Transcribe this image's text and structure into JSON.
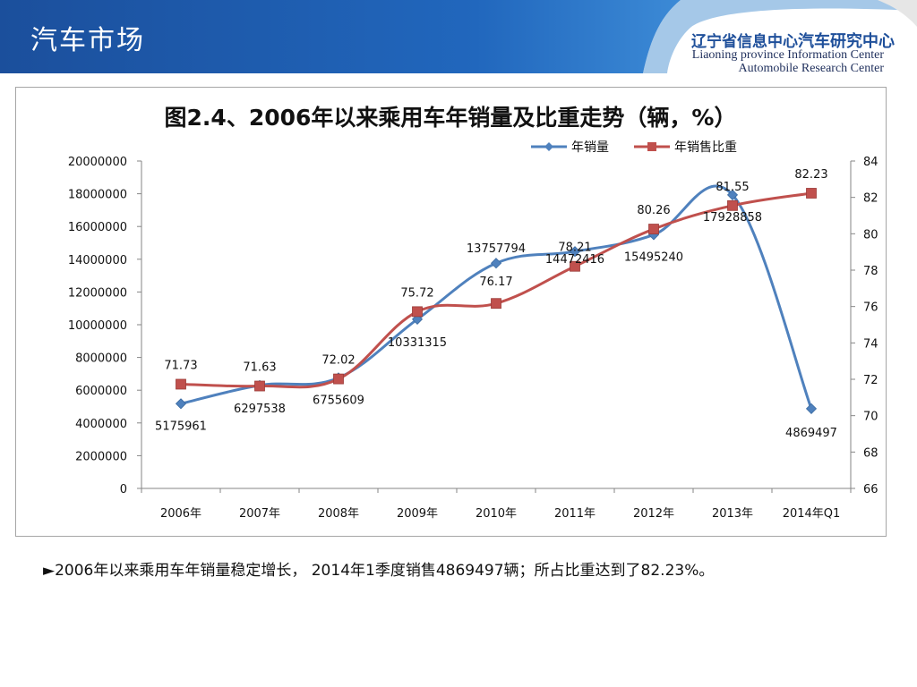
{
  "header": {
    "title": "汽车市场",
    "org_cn_prefix": "辽宁省信息中心",
    "org_cn_suffix": "汽车研究中心",
    "org_en_line1": "Liaoning province Information Center",
    "org_en_line2": "Automobile Research Center"
  },
  "colors": {
    "header_blue": "#1d5aa8",
    "series_volume": "#4f81bd",
    "series_share": "#c0504d"
  },
  "chart_data": {
    "type": "line",
    "title": "图2.4、2006年以来乘用车年销量及比重走势（辆，%）",
    "categories": [
      "2006年",
      "2007年",
      "2008年",
      "2009年",
      "2010年",
      "2011年",
      "2012年",
      "2013年",
      "2014年Q1"
    ],
    "series": [
      {
        "name": "年销量",
        "axis": "left",
        "marker": "diamond",
        "values": [
          5175961,
          6297538,
          6755609,
          10331315,
          13757794,
          14472416,
          15495240,
          17928858,
          4869497
        ],
        "labels": [
          "5175961",
          "6297538",
          "6755609",
          "10331315",
          "13757794",
          "14472416",
          "15495240",
          "17928858",
          "4869497"
        ]
      },
      {
        "name": "年销售比重",
        "axis": "right",
        "marker": "square",
        "values": [
          71.73,
          71.63,
          72.02,
          75.72,
          76.17,
          78.21,
          80.26,
          81.55,
          82.23
        ],
        "labels": [
          "71.73",
          "71.63",
          "72.02",
          "75.72",
          "76.17",
          "78.21",
          "80.26",
          "81.55",
          "82.23"
        ]
      }
    ],
    "y_left": {
      "min": 0,
      "max": 20000000,
      "ticks": [
        "0",
        "2000000",
        "4000000",
        "6000000",
        "8000000",
        "10000000",
        "12000000",
        "14000000",
        "16000000",
        "18000000",
        "20000000"
      ]
    },
    "y_right": {
      "min": 66,
      "max": 84,
      "ticks": [
        "66",
        "68",
        "70",
        "72",
        "74",
        "76",
        "78",
        "80",
        "82",
        "84"
      ]
    },
    "legend_position": "top-right",
    "grid": false
  },
  "caption": "►2006年以来乘用车年销量稳定增长， 2014年1季度销售4869497辆；所占比重达到了82.23%。"
}
